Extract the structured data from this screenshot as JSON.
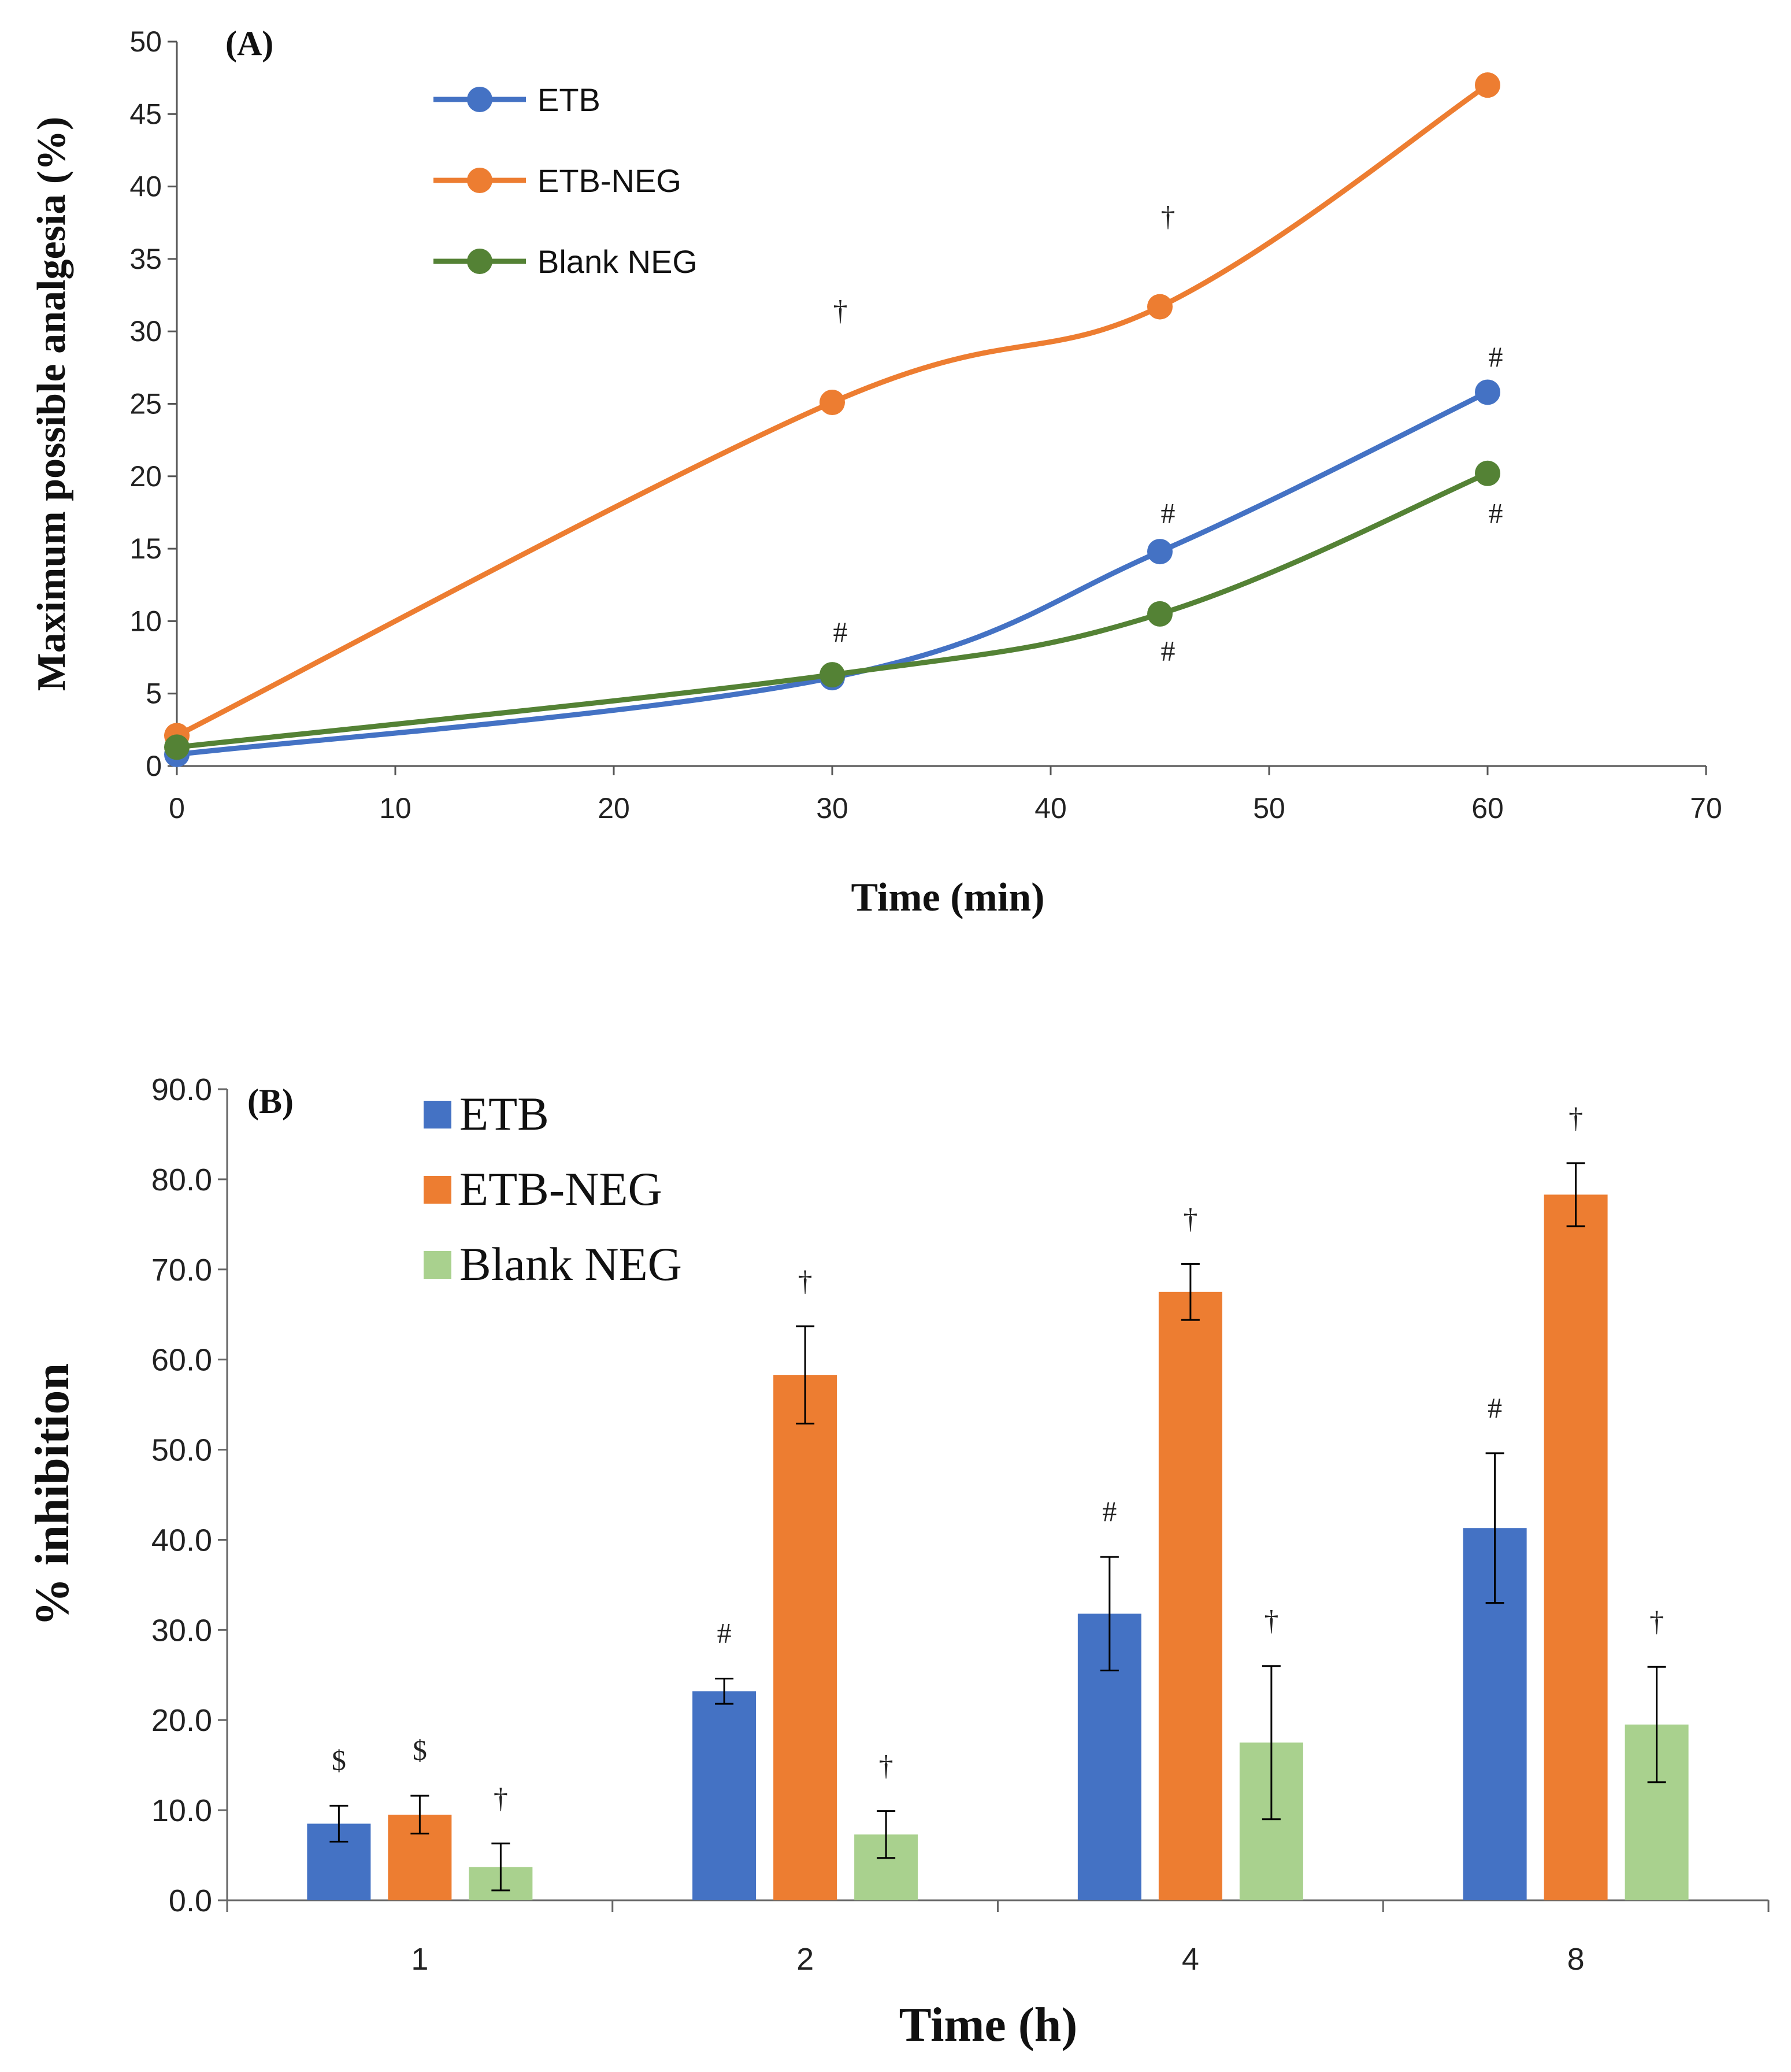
{
  "chart_data": [
    {
      "type": "line",
      "panel_label": "(A)",
      "title": "",
      "xlabel": "Time (min)",
      "ylabel": "Maximum possible  analgesia (%)",
      "xlim": [
        0,
        70
      ],
      "ylim": [
        0,
        50
      ],
      "x_ticks": [
        "0",
        "10",
        "20",
        "30",
        "40",
        "50",
        "60",
        "70"
      ],
      "y_ticks": [
        "0",
        "5",
        "10",
        "15",
        "20",
        "25",
        "30",
        "35",
        "40",
        "45",
        "50"
      ],
      "grid": false,
      "legend_position": "top-left",
      "x": [
        0,
        30,
        45,
        60
      ],
      "series": [
        {
          "name": "ETB",
          "color": "#4472C4",
          "values": [
            0.8,
            6.1,
            14.8,
            25.8
          ]
        },
        {
          "name": "ETB-NEG",
          "color": "#ED7D31",
          "values": [
            2.1,
            25.1,
            31.7,
            47.0
          ]
        },
        {
          "name": "Blank NEG",
          "color": "#548235",
          "values": [
            1.3,
            6.3,
            10.5,
            20.2
          ]
        }
      ],
      "annotations": [
        {
          "text": "†",
          "x": 30,
          "y": 31.5
        },
        {
          "text": "†",
          "x": 45,
          "y": 38.0
        },
        {
          "text": "#",
          "x": 30,
          "y": 9.3
        },
        {
          "text": "#",
          "x": 45,
          "y": 17.5
        },
        {
          "text": "#",
          "x": 45,
          "y": 8.0
        },
        {
          "text": "#",
          "x": 60,
          "y": 28.3
        },
        {
          "text": "#",
          "x": 60,
          "y": 17.5
        }
      ]
    },
    {
      "type": "bar",
      "panel_label": "(B)",
      "title": "",
      "xlabel": "Time (h)",
      "ylabel": "% inhibition",
      "ylim": [
        0,
        90
      ],
      "y_ticks": [
        "0.0",
        "10.0",
        "20.0",
        "30.0",
        "40.0",
        "50.0",
        "60.0",
        "70.0",
        "80.0",
        "90.0"
      ],
      "grid": false,
      "legend_position": "top-left",
      "categories": [
        "1",
        "2",
        "4",
        "8"
      ],
      "series": [
        {
          "name": "ETB",
          "color": "#4472C4",
          "values": [
            8.5,
            23.2,
            31.8,
            41.3
          ],
          "errors": [
            2.0,
            1.4,
            6.3,
            8.3
          ],
          "marks": [
            "$",
            "#",
            "#",
            "#"
          ]
        },
        {
          "name": "ETB-NEG",
          "color": "#ED7D31",
          "values": [
            9.5,
            58.3,
            67.5,
            78.3
          ],
          "errors": [
            2.1,
            5.4,
            3.1,
            3.5
          ],
          "marks": [
            "$",
            "†",
            "†",
            "†"
          ]
        },
        {
          "name": "Blank NEG",
          "color": "#A9D18E",
          "values": [
            3.7,
            7.3,
            17.5,
            19.5
          ],
          "errors": [
            2.6,
            2.6,
            8.5,
            6.4
          ],
          "marks": [
            "†",
            "†",
            "†",
            "†"
          ]
        }
      ]
    }
  ]
}
